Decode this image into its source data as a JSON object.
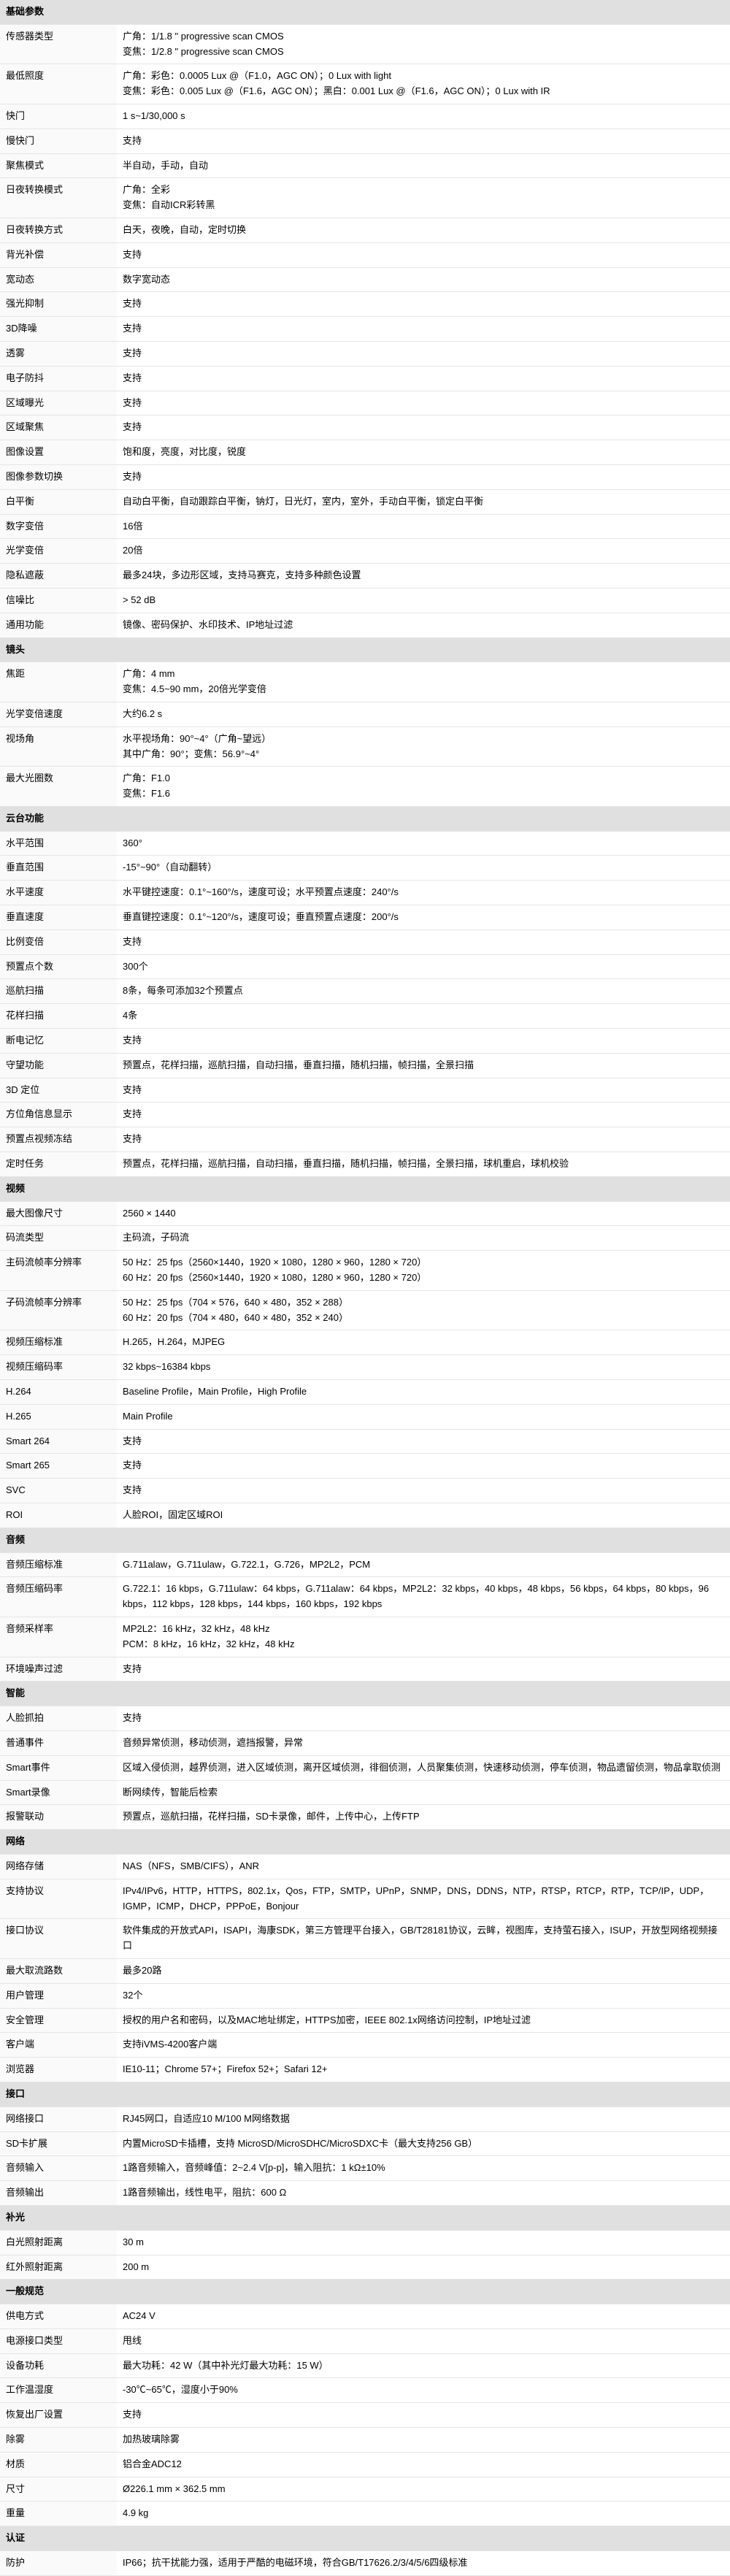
{
  "sections": [
    {
      "title": "基础参数",
      "rows": [
        {
          "label": "传感器类型",
          "value": "广角：1/1.8 \" progressive scan CMOS\n变焦：1/2.8 \" progressive scan CMOS"
        },
        {
          "label": "最低照度",
          "value": "广角：彩色：0.0005 Lux @（F1.0，AGC ON）；0 Lux with light\n变焦：彩色：0.005 Lux @（F1.6，AGC ON）；黑白：0.001 Lux @（F1.6，AGC ON）；0 Lux with IR"
        },
        {
          "label": "快门",
          "value": "1 s~1/30,000 s"
        },
        {
          "label": "慢快门",
          "value": "支持"
        },
        {
          "label": "聚焦模式",
          "value": "半自动，手动，自动"
        },
        {
          "label": "日夜转换模式",
          "value": "广角：全彩\n变焦：自动ICR彩转黑"
        },
        {
          "label": "日夜转换方式",
          "value": "白天，夜晚，自动，定时切换"
        },
        {
          "label": "背光补偿",
          "value": "支持"
        },
        {
          "label": "宽动态",
          "value": "数字宽动态"
        },
        {
          "label": "强光抑制",
          "value": "支持"
        },
        {
          "label": "3D降噪",
          "value": "支持"
        },
        {
          "label": "透雾",
          "value": "支持"
        },
        {
          "label": "电子防抖",
          "value": "支持"
        },
        {
          "label": "区域曝光",
          "value": "支持"
        },
        {
          "label": "区域聚焦",
          "value": "支持"
        },
        {
          "label": "图像设置",
          "value": "饱和度，亮度，对比度，锐度"
        },
        {
          "label": "图像参数切换",
          "value": "支持"
        },
        {
          "label": "白平衡",
          "value": "自动白平衡，自动跟踪白平衡，钠灯，日光灯，室内，室外，手动白平衡，锁定白平衡"
        },
        {
          "label": "数字变倍",
          "value": "16倍"
        },
        {
          "label": "光学变倍",
          "value": "20倍"
        },
        {
          "label": "隐私遮蔽",
          "value": "最多24块，多边形区域，支持马赛克，支持多种颜色设置"
        },
        {
          "label": "信噪比",
          "value": "> 52 dB"
        },
        {
          "label": "通用功能",
          "value": "镜像、密码保护、水印技术、IP地址过滤"
        }
      ]
    },
    {
      "title": "镜头",
      "rows": [
        {
          "label": "焦距",
          "value": "广角：4 mm\n变焦：4.5~90 mm，20倍光学变倍"
        },
        {
          "label": "光学变倍速度",
          "value": "大约6.2 s"
        },
        {
          "label": "视场角",
          "value": "水平视场角：90°~4°（广角~望远）\n其中广角：90°；变焦：56.9°~4°"
        },
        {
          "label": "最大光圈数",
          "value": "广角：F1.0\n变焦：F1.6"
        }
      ]
    },
    {
      "title": "云台功能",
      "rows": [
        {
          "label": "水平范围",
          "value": "360°"
        },
        {
          "label": "垂直范围",
          "value": "-15°~90°（自动翻转）"
        },
        {
          "label": "水平速度",
          "value": "水平键控速度：0.1°~160°/s，速度可设；水平预置点速度：240°/s"
        },
        {
          "label": "垂直速度",
          "value": "垂直键控速度：0.1°~120°/s，速度可设；垂直预置点速度：200°/s"
        },
        {
          "label": "比例变倍",
          "value": "支持"
        },
        {
          "label": "预置点个数",
          "value": "300个"
        },
        {
          "label": "巡航扫描",
          "value": "8条，每条可添加32个预置点"
        },
        {
          "label": "花样扫描",
          "value": "4条"
        },
        {
          "label": "断电记忆",
          "value": "支持"
        },
        {
          "label": "守望功能",
          "value": "预置点，花样扫描，巡航扫描，自动扫描，垂直扫描，随机扫描，帧扫描，全景扫描"
        },
        {
          "label": "3D 定位",
          "value": "支持"
        },
        {
          "label": "方位角信息显示",
          "value": "支持"
        },
        {
          "label": "预置点视频冻结",
          "value": "支持"
        },
        {
          "label": "定时任务",
          "value": "预置点，花样扫描，巡航扫描，自动扫描，垂直扫描，随机扫描，帧扫描，全景扫描，球机重启，球机校验"
        }
      ]
    },
    {
      "title": "视频",
      "rows": [
        {
          "label": "最大图像尺寸",
          "value": "2560 × 1440"
        },
        {
          "label": "码流类型",
          "value": "主码流，子码流"
        },
        {
          "label": "主码流帧率分辨率",
          "value": "50 Hz：25 fps（2560×1440，1920 × 1080，1280 × 960，1280 × 720）\n60 Hz：20 fps（2560×1440，1920 × 1080，1280 × 960，1280 × 720）"
        },
        {
          "label": "子码流帧率分辨率",
          "value": "50 Hz：25 fps（704 × 576，640 × 480，352 × 288）\n60 Hz：20 fps（704 × 480，640 × 480，352 × 240）"
        },
        {
          "label": "视频压缩标准",
          "value": "H.265，H.264，MJPEG"
        },
        {
          "label": "视频压缩码率",
          "value": "32 kbps~16384 kbps"
        },
        {
          "label": "H.264",
          "value": "Baseline Profile，Main Profile，High Profile"
        },
        {
          "label": "H.265",
          "value": "Main Profile"
        },
        {
          "label": "Smart 264",
          "value": "支持"
        },
        {
          "label": "Smart 265",
          "value": "支持"
        },
        {
          "label": "SVC",
          "value": "支持"
        },
        {
          "label": "ROI",
          "value": "人脸ROI，固定区域ROI"
        }
      ]
    },
    {
      "title": "音频",
      "rows": [
        {
          "label": "音频压缩标准",
          "value": "G.711alaw，G.711ulaw，G.722.1，G.726，MP2L2，PCM"
        },
        {
          "label": "音频压缩码率",
          "value": "G.722.1：16 kbps，G.711ulaw：64 kbps，G.711alaw：64 kbps，MP2L2：32 kbps，40 kbps，48 kbps，56 kbps，64 kbps，80 kbps，96 kbps，112 kbps，128 kbps，144 kbps，160 kbps，192 kbps"
        },
        {
          "label": "音频采样率",
          "value": "MP2L2：16 kHz，32 kHz，48 kHz\nPCM：8 kHz，16 kHz，32 kHz，48 kHz"
        },
        {
          "label": "环境噪声过滤",
          "value": "支持"
        }
      ]
    },
    {
      "title": "智能",
      "rows": [
        {
          "label": "人脸抓拍",
          "value": "支持"
        },
        {
          "label": "普通事件",
          "value": "音频异常侦测，移动侦测，遮挡报警，异常"
        },
        {
          "label": "Smart事件",
          "value": "区域入侵侦测，越界侦测，进入区域侦测，离开区域侦测，徘徊侦测，人员聚集侦测，快速移动侦测，停车侦测，物品遗留侦测，物品拿取侦测"
        },
        {
          "label": "Smart录像",
          "value": "断网续传，智能后检索"
        },
        {
          "label": "报警联动",
          "value": "预置点，巡航扫描，花样扫描，SD卡录像，邮件，上传中心，上传FTP"
        }
      ]
    },
    {
      "title": "网络",
      "rows": [
        {
          "label": "网络存储",
          "value": "NAS（NFS，SMB/CIFS），ANR"
        },
        {
          "label": "支持协议",
          "value": "IPv4/IPv6，HTTP，HTTPS，802.1x，Qos，FTP，SMTP，UPnP，SNMP，DNS，DDNS，NTP，RTSP，RTCP，RTP，TCP/IP，UDP，IGMP，ICMP，DHCP，PPPoE，Bonjour"
        },
        {
          "label": "接口协议",
          "value": "软件集成的开放式API，ISAPI，海康SDK，第三方管理平台接入，GB/T28181协议，云眸，视图库，支持萤石接入，ISUP，开放型网络视频接口"
        },
        {
          "label": "最大取流路数",
          "value": "最多20路"
        },
        {
          "label": "用户管理",
          "value": "32个"
        },
        {
          "label": "安全管理",
          "value": "授权的用户名和密码，以及MAC地址绑定，HTTPS加密，IEEE 802.1x网络访问控制，IP地址过滤"
        },
        {
          "label": "客户端",
          "value": "支持iVMS-4200客户端"
        },
        {
          "label": "浏览器",
          "value": "IE10-11；Chrome 57+；Firefox 52+；Safari 12+"
        }
      ]
    },
    {
      "title": "接口",
      "rows": [
        {
          "label": "网络接口",
          "value": "RJ45网口，自适应10 M/100 M网络数据"
        },
        {
          "label": "SD卡扩展",
          "value": "内置MicroSD卡插槽，支持 MicroSD/MicroSDHC/MicroSDXC卡（最大支持256 GB）"
        },
        {
          "label": "音频输入",
          "value": "1路音频输入，音频峰值：2~2.4 V[p-p]，输入阻抗：1 kΩ±10%"
        },
        {
          "label": "音频输出",
          "value": "1路音频输出，线性电平，阻抗：600 Ω"
        }
      ]
    },
    {
      "title": "补光",
      "rows": [
        {
          "label": "白光照射距离",
          "value": "30 m"
        },
        {
          "label": "红外照射距离",
          "value": "200 m"
        }
      ]
    },
    {
      "title": "一般规范",
      "rows": [
        {
          "label": "供电方式",
          "value": "AC24 V"
        },
        {
          "label": "电源接口类型",
          "value": "甩线"
        },
        {
          "label": "设备功耗",
          "value": "最大功耗：42 W（其中补光灯最大功耗：15 W）"
        },
        {
          "label": "工作温湿度",
          "value": "-30℃~65℃，湿度小于90%"
        },
        {
          "label": "恢复出厂设置",
          "value": "支持"
        },
        {
          "label": "除雾",
          "value": "加热玻璃除雾"
        },
        {
          "label": "材质",
          "value": "铝合金ADC12"
        },
        {
          "label": "尺寸",
          "value": "Ø226.1 mm × 362.5 mm"
        },
        {
          "label": "重量",
          "value": "4.9 kg"
        }
      ]
    },
    {
      "title": "认证",
      "rows": [
        {
          "label": "防护",
          "value": "IP66；抗干扰能力强，适用于严酷的电磁环境，符合GB/T17626.2/3/4/5/6四级标准"
        }
      ]
    }
  ]
}
